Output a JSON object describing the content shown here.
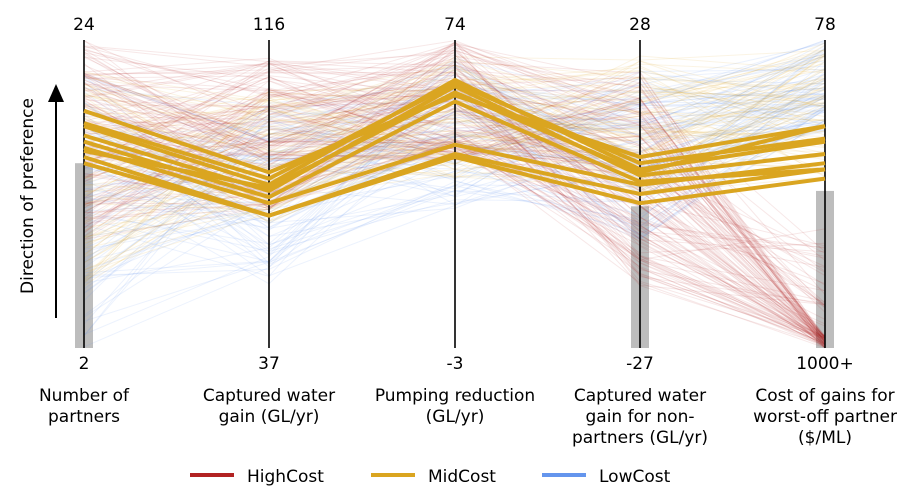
{
  "chart_data": {
    "type": "parallel_coordinates",
    "title": "",
    "y_axis_label": "Direction of preference",
    "axes": [
      {
        "name": "partners",
        "label_lines": [
          "Number of",
          "partners"
        ],
        "top": "24",
        "bottom": "2",
        "band_top_value": 0.6
      },
      {
        "name": "captured-gain",
        "label_lines": [
          "Captured water",
          "gain (GL/yr)"
        ],
        "top": "116",
        "bottom": "37",
        "band_top_value": null
      },
      {
        "name": "pumping-reduction",
        "label_lines": [
          "Pumping reduction",
          "(GL/yr)"
        ],
        "top": "74",
        "bottom": "-3",
        "band_top_value": null
      },
      {
        "name": "captured-gain-nonpartners",
        "label_lines": [
          "Captured water",
          "gain for non-",
          "partners (GL/yr)"
        ],
        "top": "28",
        "bottom": "-27",
        "band_top_value": 0.46
      },
      {
        "name": "cost-worst-off",
        "label_lines": [
          "Cost of gains for",
          "worst-off partner",
          "($/ML)"
        ],
        "top": "78",
        "bottom": "1000+",
        "band_top_value": 0.51
      }
    ],
    "legend": [
      {
        "name": "HighCost",
        "color": "#b22222"
      },
      {
        "name": "MidCost",
        "color": "#daa520"
      },
      {
        "name": "LowCost",
        "color": "#6495ed"
      }
    ],
    "highlighted_series_color": "#daa520",
    "highlighted_solutions": [
      [
        0.77,
        0.57,
        0.82,
        0.62,
        0.72
      ],
      [
        0.73,
        0.55,
        0.86,
        0.6,
        0.68
      ],
      [
        0.72,
        0.53,
        0.87,
        0.58,
        0.67
      ],
      [
        0.69,
        0.51,
        0.85,
        0.56,
        0.63
      ],
      [
        0.67,
        0.49,
        0.8,
        0.54,
        0.58
      ],
      [
        0.65,
        0.47,
        0.66,
        0.53,
        0.6
      ],
      [
        0.62,
        0.43,
        0.63,
        0.5,
        0.58
      ],
      [
        0.6,
        0.43,
        0.62,
        0.47,
        0.55
      ],
      [
        0.64,
        0.52,
        0.83,
        0.57,
        0.72
      ]
    ]
  }
}
